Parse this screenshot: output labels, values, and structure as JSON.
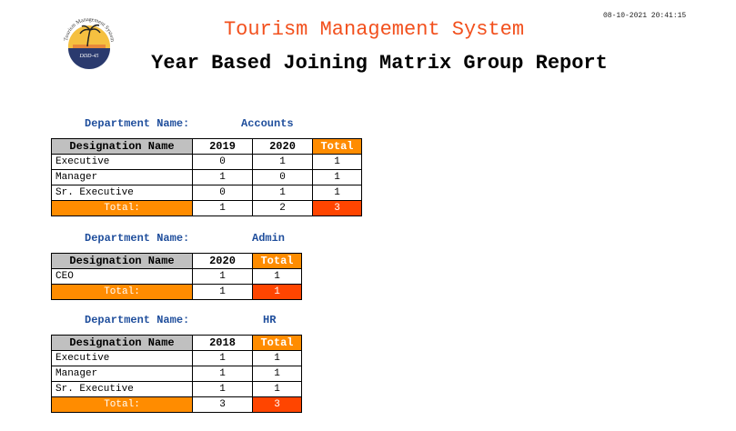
{
  "header": {
    "timestamp": "08-10-2021 20:41:15",
    "title": "Tourism Management System",
    "subtitle": "Year Based Joining Matrix Group Report",
    "logo_text": "Tourism Management System",
    "logo_code": "DDD-45"
  },
  "labels": {
    "department_name": "Department Name:",
    "designation_name": "Designation Name",
    "total": "Total",
    "total_row": "Total:"
  },
  "departments": [
    {
      "name": "Accounts",
      "years": [
        "2019",
        "2020"
      ],
      "rows": [
        {
          "designation": "Executive",
          "values": [
            "0",
            "1"
          ],
          "total": "1"
        },
        {
          "designation": "Manager",
          "values": [
            "1",
            "0"
          ],
          "total": "1"
        },
        {
          "designation": "Sr. Executive",
          "values": [
            "0",
            "1"
          ],
          "total": "1"
        }
      ],
      "totals": [
        "1",
        "2"
      ],
      "grand_total": "3"
    },
    {
      "name": "Admin",
      "years": [
        "2020"
      ],
      "rows": [
        {
          "designation": "CEO",
          "values": [
            "1"
          ],
          "total": "1"
        }
      ],
      "totals": [
        "1"
      ],
      "grand_total": "1"
    },
    {
      "name": "HR",
      "years": [
        "2018"
      ],
      "rows": [
        {
          "designation": "Executive",
          "values": [
            "1"
          ],
          "total": "1"
        },
        {
          "designation": "Manager",
          "values": [
            "1"
          ],
          "total": "1"
        },
        {
          "designation": "Sr. Executive",
          "values": [
            "1"
          ],
          "total": "1"
        }
      ],
      "totals": [
        "3"
      ],
      "grand_total": "3"
    }
  ],
  "colors": {
    "title": "#f2501d",
    "department_text": "#1f4e9c",
    "header_gray": "#c0c0c0",
    "total_orange": "#ff8c00",
    "grand_total_red": "#ff4500"
  }
}
